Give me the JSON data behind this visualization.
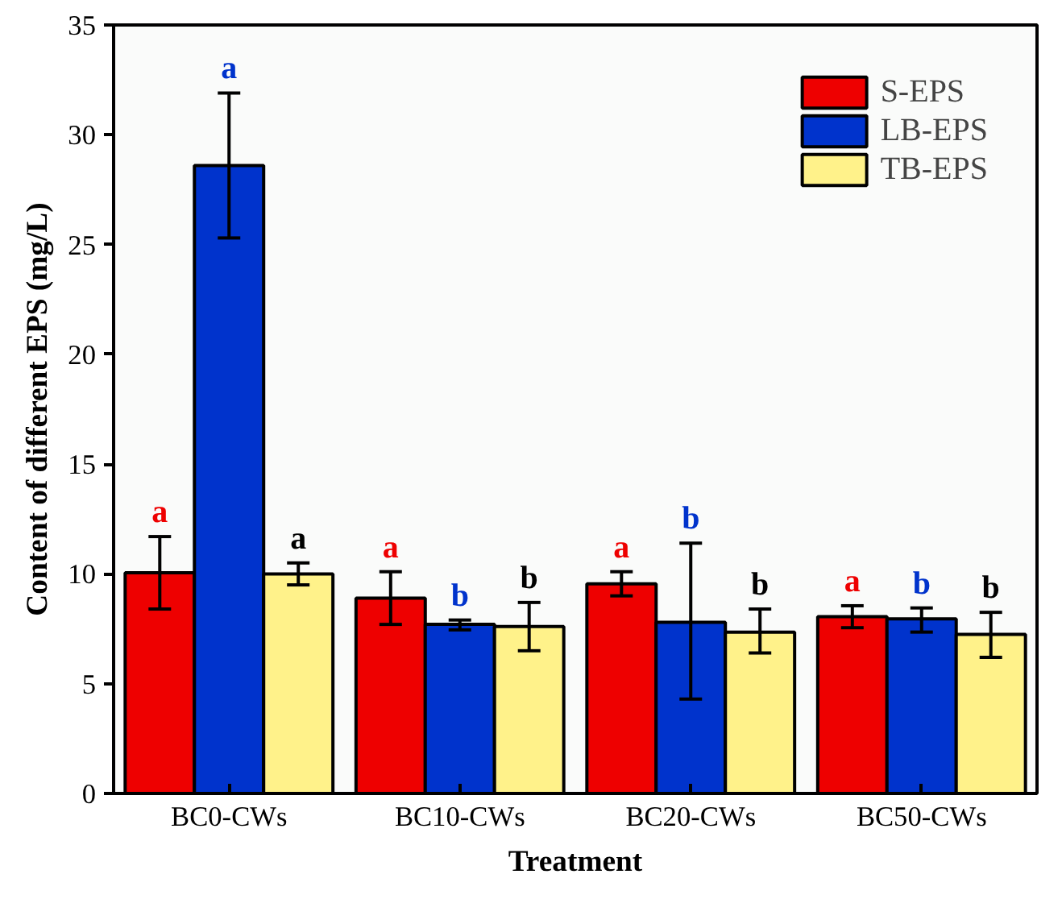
{
  "chart_data": {
    "type": "bar",
    "xlabel": "Treatment",
    "ylabel": "Content of different EPS (mg/L)",
    "categories": [
      "BC0-CWs",
      "BC10-CWs",
      "BC20-CWs",
      "BC50-CWs"
    ],
    "ylim": [
      0,
      35
    ],
    "yticks": [
      0,
      5,
      10,
      15,
      20,
      25,
      30,
      35
    ],
    "grid": false,
    "legend": "top right",
    "series": [
      {
        "name": "S-EPS",
        "color": "#ee0000",
        "values": [
          10.05,
          8.9,
          9.55,
          8.05
        ],
        "errors": [
          [
            8.4,
            11.7
          ],
          [
            7.7,
            10.1
          ],
          [
            9.0,
            10.1
          ],
          [
            7.55,
            8.55
          ]
        ]
      },
      {
        "name": "LB-EPS",
        "color": "#0033cc",
        "values": [
          28.6,
          7.7,
          7.8,
          7.95
        ],
        "errors": [
          [
            25.3,
            31.9
          ],
          [
            7.45,
            7.9
          ],
          [
            4.3,
            11.4
          ],
          [
            7.35,
            8.45
          ]
        ]
      },
      {
        "name": "TB-EPS",
        "color": "#fff28a",
        "values": [
          10.0,
          7.6,
          7.35,
          7.25
        ],
        "errors": [
          [
            9.5,
            10.5
          ],
          [
            6.5,
            8.7
          ],
          [
            6.4,
            8.4
          ],
          [
            6.2,
            8.25
          ]
        ]
      }
    ],
    "annotations": [
      "a",
      "a",
      "a",
      "a",
      "b",
      "b",
      "a",
      "b",
      "b",
      "a",
      "b",
      "b"
    ]
  }
}
